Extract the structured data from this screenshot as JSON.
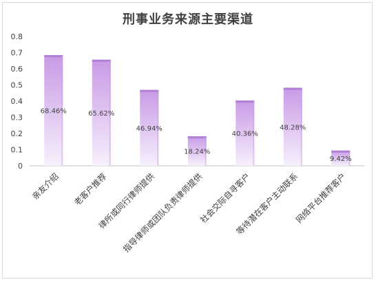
{
  "chart_data": {
    "type": "bar",
    "title": "刑事业务来源主要渠道",
    "categories": [
      "亲友介绍",
      "老客户推荐",
      "律所或同行律师提供",
      "指导律师或团队负责律师提供",
      "社会交际自寻客户",
      "等待潜在客户主动联系",
      "网络平台推荐客户"
    ],
    "values": [
      68.46,
      65.62,
      46.94,
      18.24,
      40.36,
      48.28,
      9.42
    ],
    "data_labels": [
      "68.46%",
      "65.62%",
      "46.94%",
      "18.24%",
      "40.36%",
      "48.28%",
      "9.42%"
    ],
    "yticks": [
      "0",
      "0.1",
      "0.2",
      "0.3",
      "0.4",
      "0.5",
      "0.6",
      "0.7",
      "0.8"
    ],
    "ylim": [
      0,
      0.8
    ],
    "grid": false,
    "legend": "none",
    "colors": {
      "bar_top": "#c89ae6",
      "bar_bottom": "#f7f0fc",
      "bar_cap": "#b27fd6",
      "axis": "#bfbfbf"
    }
  }
}
